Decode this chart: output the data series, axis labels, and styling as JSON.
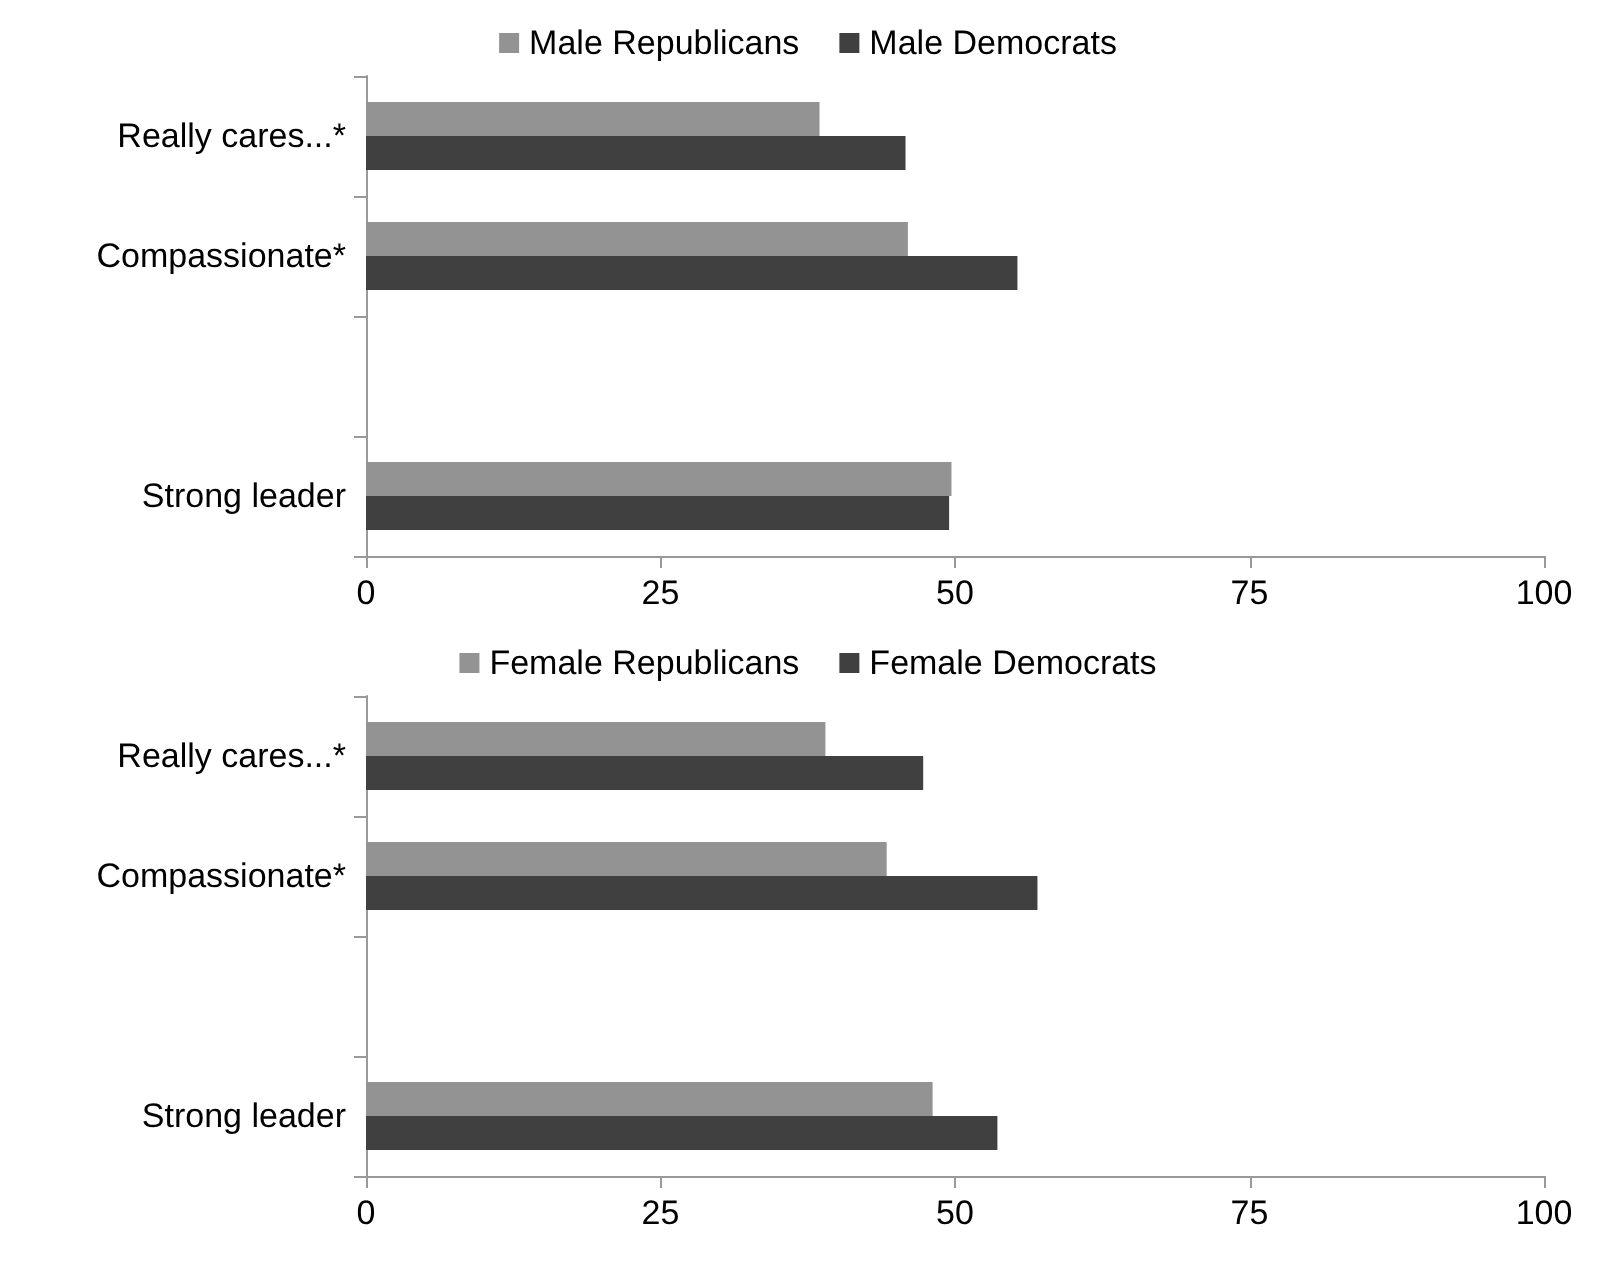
{
  "chart_data": [
    {
      "type": "bar",
      "orientation": "horizontal",
      "categories": [
        "Really cares...*",
        "Compassionate*",
        null,
        "Strong leader"
      ],
      "series": [
        {
          "name": "Male Republicans",
          "color": "#939393",
          "values": [
            38.5,
            46.0,
            null,
            49.7
          ]
        },
        {
          "name": "Male Democrats",
          "color": "#404040",
          "values": [
            45.8,
            55.3,
            null,
            49.5
          ]
        }
      ],
      "xlim": [
        0,
        100
      ],
      "xticks": [
        0,
        25,
        50,
        75,
        100
      ],
      "grid": false,
      "legend": "top"
    },
    {
      "type": "bar",
      "orientation": "horizontal",
      "categories": [
        "Really cares...*",
        "Compassionate*",
        null,
        "Strong leader"
      ],
      "series": [
        {
          "name": "Female Republicans",
          "color": "#939393",
          "values": [
            39.0,
            44.2,
            null,
            48.1
          ]
        },
        {
          "name": "Female Democrats",
          "color": "#404040",
          "values": [
            47.3,
            57.0,
            null,
            53.6
          ]
        }
      ],
      "xlim": [
        0,
        100
      ],
      "xticks": [
        0,
        25,
        50,
        75,
        100
      ],
      "grid": false,
      "legend": "top"
    }
  ]
}
